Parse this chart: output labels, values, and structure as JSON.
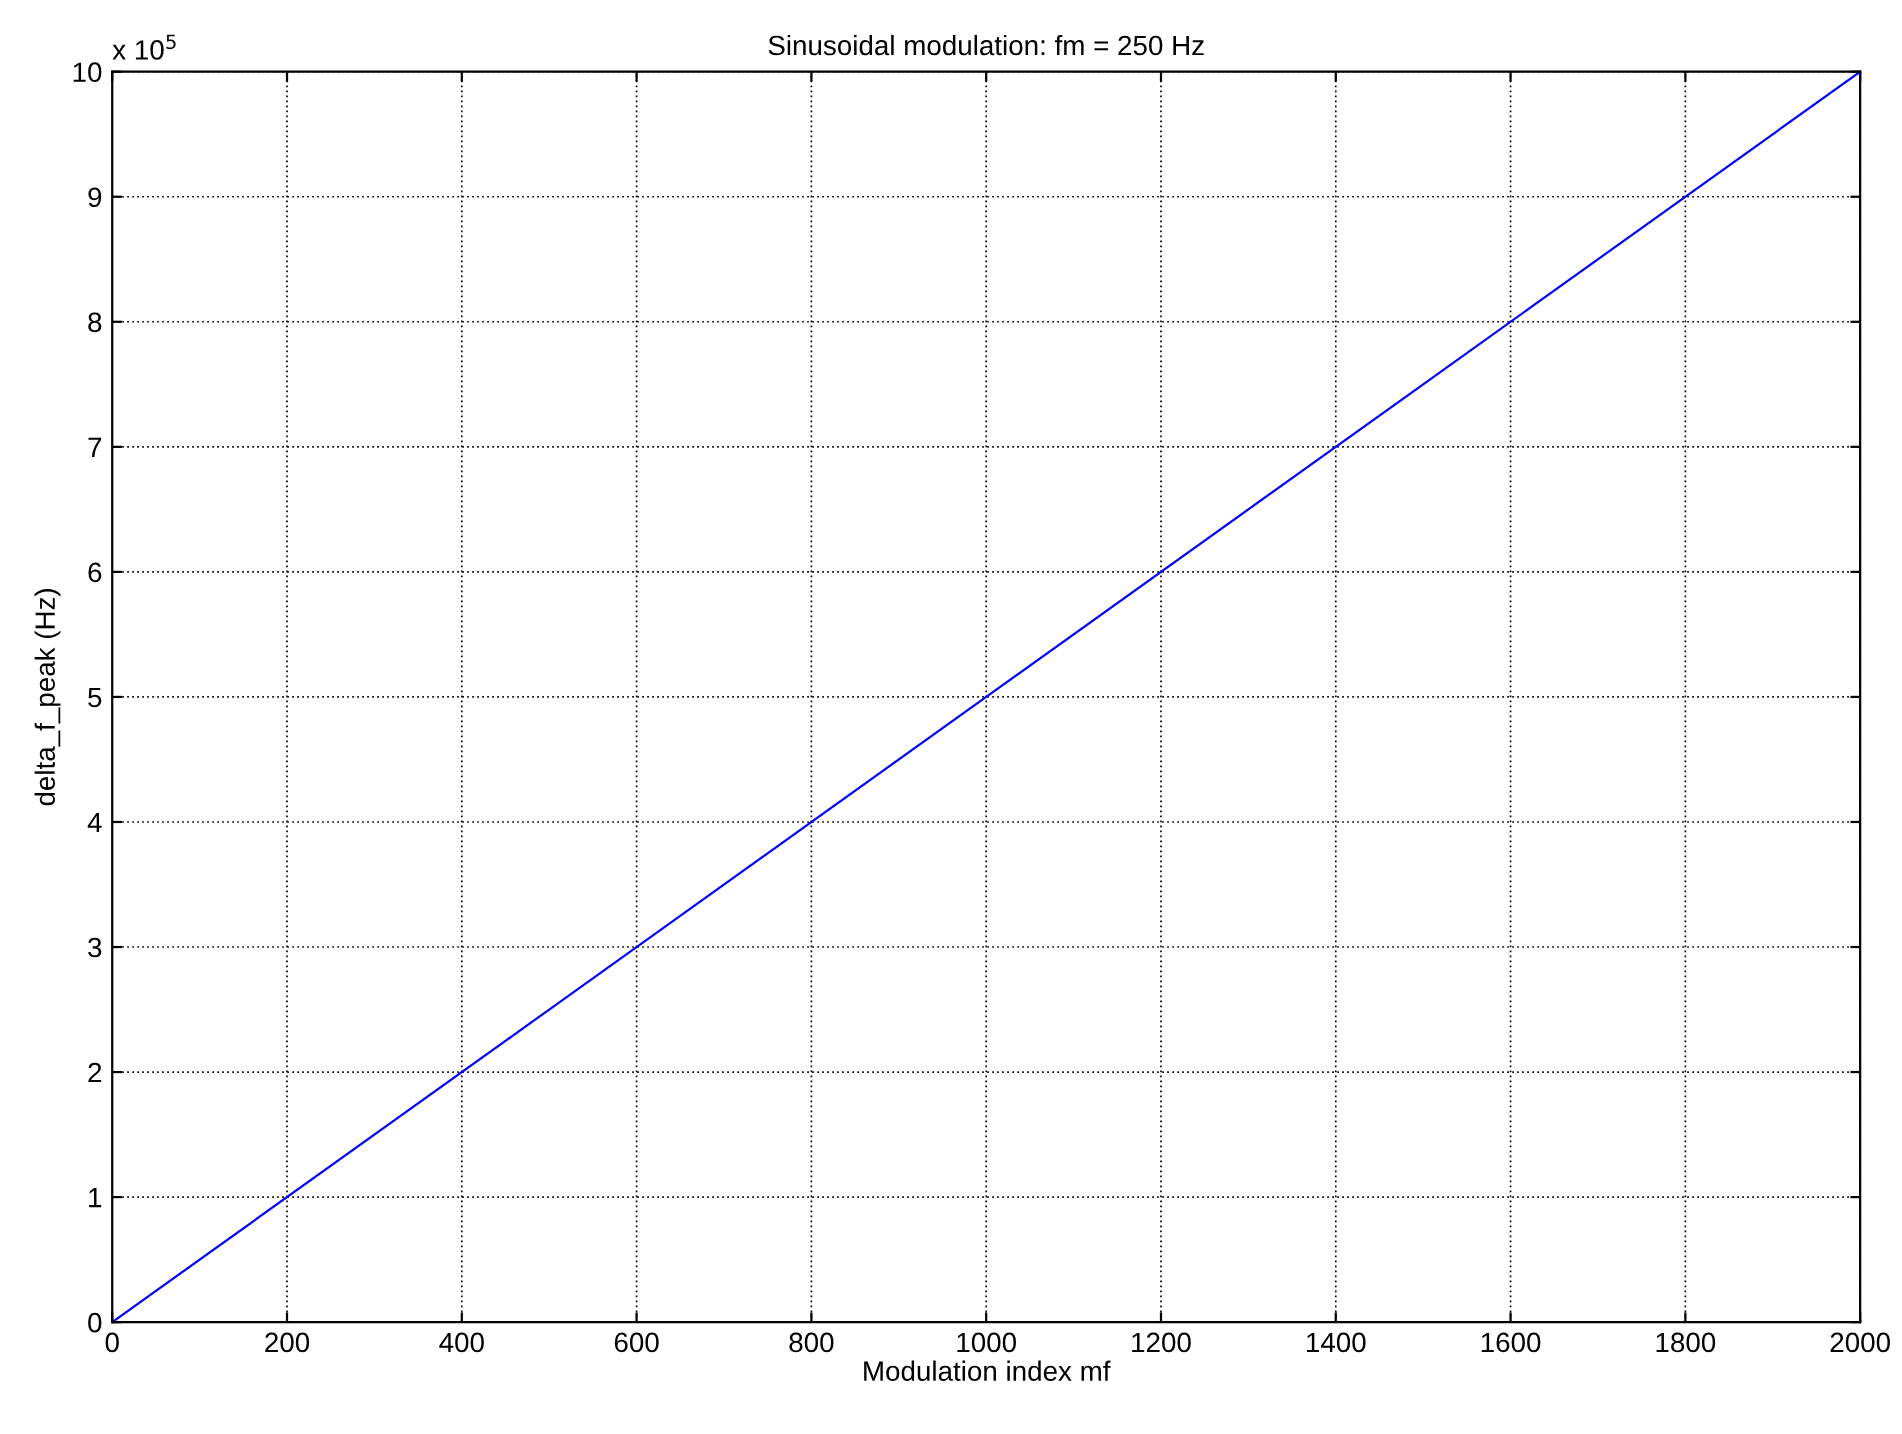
{
  "chart_data": {
    "type": "line",
    "title": "Sinusoidal modulation: fm = 250 Hz",
    "xlabel": "Modulation index mf",
    "ylabel": "delta_f_peak (Hz)",
    "annotations": [
      "x 10$^{5}$"
    ],
    "x": [
      0,
      500,
      1000,
      1500,
      2000
    ],
    "series": [
      {
        "color": "#0000ff",
        "values": [
          0,
          2.5,
          5,
          7.5,
          10
        ]
      }
    ],
    "xlim": [
      0,
      2000
    ],
    "xticks": [
      0,
      200,
      400,
      600,
      800,
      1000,
      1200,
      1400,
      1600,
      1800,
      2000
    ],
    "ylim": [
      0,
      10
    ],
    "yticks": [
      0,
      1,
      2,
      3,
      4,
      5,
      6,
      7,
      8,
      9,
      10
    ],
    "grid": true,
    "line_style": "solid",
    "marker": "none"
  }
}
